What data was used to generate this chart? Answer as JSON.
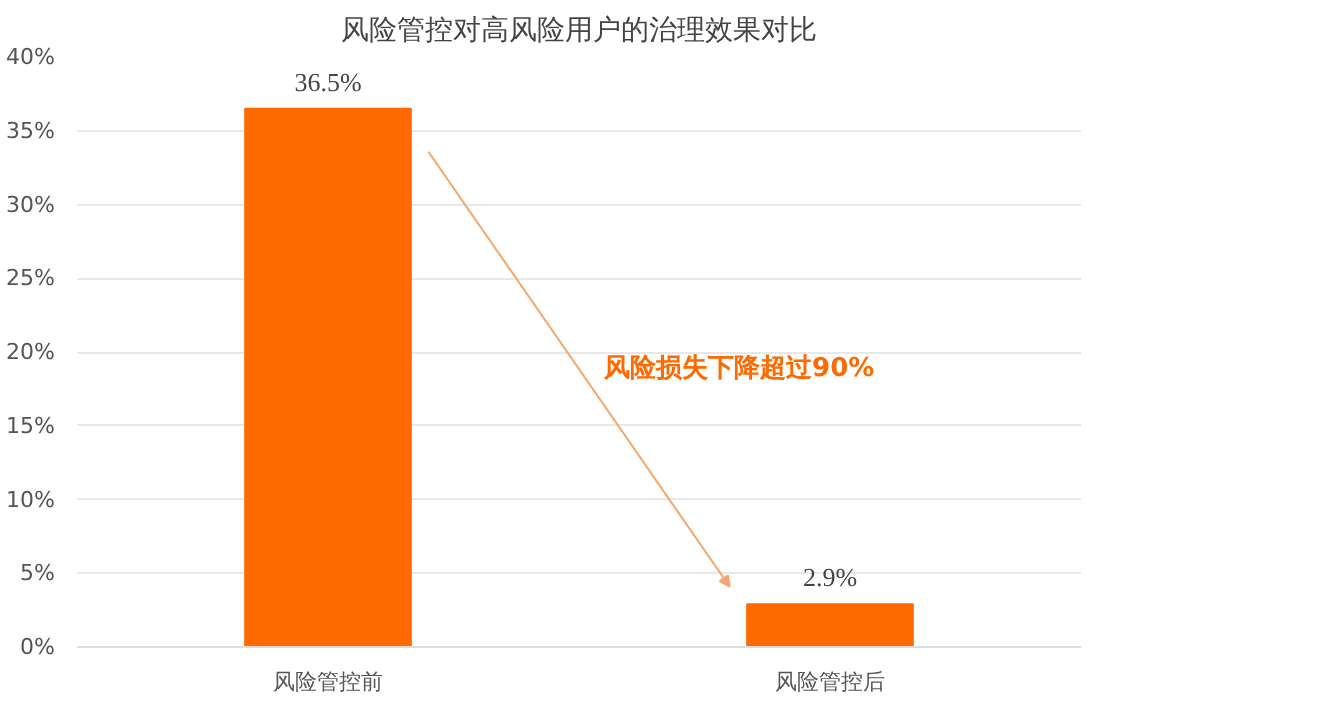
{
  "chart_data": {
    "type": "bar",
    "title": "风险管控对高风险用户的治理效果对比",
    "categories": [
      "风险管控前",
      "风险管控后"
    ],
    "values": [
      36.5,
      2.9
    ],
    "color": "#ff6a00",
    "value_labels": [
      "36.5%",
      "2.9%"
    ],
    "ylim": [
      0,
      40
    ],
    "yticks": [
      {
        "value": 0,
        "label": "0%"
      },
      {
        "value": 5,
        "label": "5%"
      },
      {
        "value": 10,
        "label": "10%"
      },
      {
        "value": 15,
        "label": "15%"
      },
      {
        "value": 20,
        "label": "20%"
      },
      {
        "value": 25,
        "label": "25%"
      },
      {
        "value": 30,
        "label": "30%"
      },
      {
        "value": 35,
        "label": "35%"
      },
      {
        "value": 40,
        "label": "40%"
      }
    ],
    "grid": "y",
    "annotations": [
      "风险损失下降超过90%"
    ]
  }
}
